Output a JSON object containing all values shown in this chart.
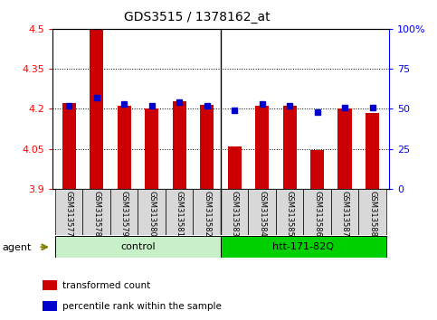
{
  "title": "GDS3515 / 1378162_at",
  "samples": [
    "GSM313577",
    "GSM313578",
    "GSM313579",
    "GSM313580",
    "GSM313581",
    "GSM313582",
    "GSM313583",
    "GSM313584",
    "GSM313585",
    "GSM313586",
    "GSM313587",
    "GSM313588"
  ],
  "transformed_count": [
    4.22,
    4.5,
    4.21,
    4.2,
    4.23,
    4.215,
    4.06,
    4.21,
    4.21,
    4.045,
    4.2,
    4.185
  ],
  "percentile_rank": [
    52,
    57,
    53,
    52,
    54,
    52,
    49,
    53,
    52,
    48,
    51,
    51
  ],
  "ylim_left": [
    3.9,
    4.5
  ],
  "ylim_right": [
    0,
    100
  ],
  "yticks_left": [
    3.9,
    4.05,
    4.2,
    4.35,
    4.5
  ],
  "yticks_right": [
    0,
    25,
    50,
    75,
    100
  ],
  "ytick_labels_left": [
    "3.9",
    "4.05",
    "4.2",
    "4.35",
    "4.5"
  ],
  "ytick_labels_right": [
    "0",
    "25",
    "50",
    "75",
    "100%"
  ],
  "hgrid_values": [
    4.05,
    4.2,
    4.35
  ],
  "groups": [
    {
      "label": "control",
      "start": 0,
      "end": 6,
      "color": "#c8f0c8"
    },
    {
      "label": "htt-171-82Q",
      "start": 6,
      "end": 12,
      "color": "#00d000"
    }
  ],
  "agent_label": "agent",
  "bar_color": "#cc0000",
  "dot_color": "#0000cc",
  "bar_width": 0.5,
  "baseline": 3.9,
  "legend_items": [
    {
      "label": "transformed count",
      "color": "#cc0000"
    },
    {
      "label": "percentile rank within the sample",
      "color": "#0000cc"
    }
  ],
  "sep_x": 5.5,
  "xlim": [
    -0.6,
    11.6
  ]
}
